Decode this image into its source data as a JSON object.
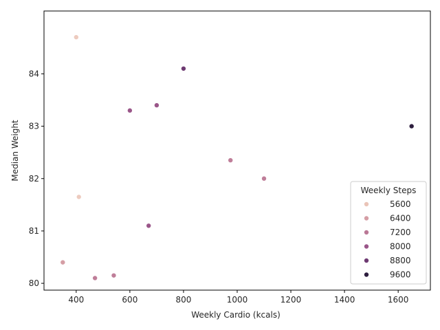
{
  "chart_data": {
    "type": "scatter",
    "xlabel": "Weekly Cardio (kcals)",
    "ylabel": "Median Weight",
    "xlim": [
      280,
      1720
    ],
    "ylim": [
      79.87,
      85.2
    ],
    "x_ticks": [
      400,
      600,
      800,
      1000,
      1200,
      1400,
      1600
    ],
    "y_ticks": [
      80,
      81,
      82,
      83,
      84
    ],
    "grid": false,
    "legend": {
      "title": "Weekly Steps",
      "placement": "lower-right",
      "entries": [
        {
          "label": "5600",
          "color": "#eac4b8"
        },
        {
          "label": "6400",
          "color": "#d59ea5"
        },
        {
          "label": "7200",
          "color": "#ba7896"
        },
        {
          "label": "8000",
          "color": "#9a5689"
        },
        {
          "label": "8800",
          "color": "#6e3a72"
        },
        {
          "label": "9600",
          "color": "#2d1e3e"
        }
      ]
    },
    "points": [
      {
        "x": 400,
        "y": 84.7,
        "hue": 5400,
        "color": "#edcbbf"
      },
      {
        "x": 800,
        "y": 84.1,
        "hue": 8800,
        "color": "#6e3a72"
      },
      {
        "x": 700,
        "y": 83.4,
        "hue": 8000,
        "color": "#9a5689"
      },
      {
        "x": 600,
        "y": 83.3,
        "hue": 8000,
        "color": "#9a5689"
      },
      {
        "x": 1650,
        "y": 83.0,
        "hue": 9900,
        "color": "#2d1e3e"
      },
      {
        "x": 975,
        "y": 82.35,
        "hue": 7100,
        "color": "#bf7e99"
      },
      {
        "x": 1100,
        "y": 82.0,
        "hue": 7100,
        "color": "#bf7e99"
      },
      {
        "x": 410,
        "y": 81.65,
        "hue": 5400,
        "color": "#edcbbf"
      },
      {
        "x": 670,
        "y": 81.1,
        "hue": 8000,
        "color": "#9a5689"
      },
      {
        "x": 350,
        "y": 80.4,
        "hue": 6400,
        "color": "#d59ea5"
      },
      {
        "x": 540,
        "y": 80.15,
        "hue": 7100,
        "color": "#bf7e99"
      },
      {
        "x": 470,
        "y": 80.1,
        "hue": 7100,
        "color": "#bf7e99"
      }
    ]
  }
}
